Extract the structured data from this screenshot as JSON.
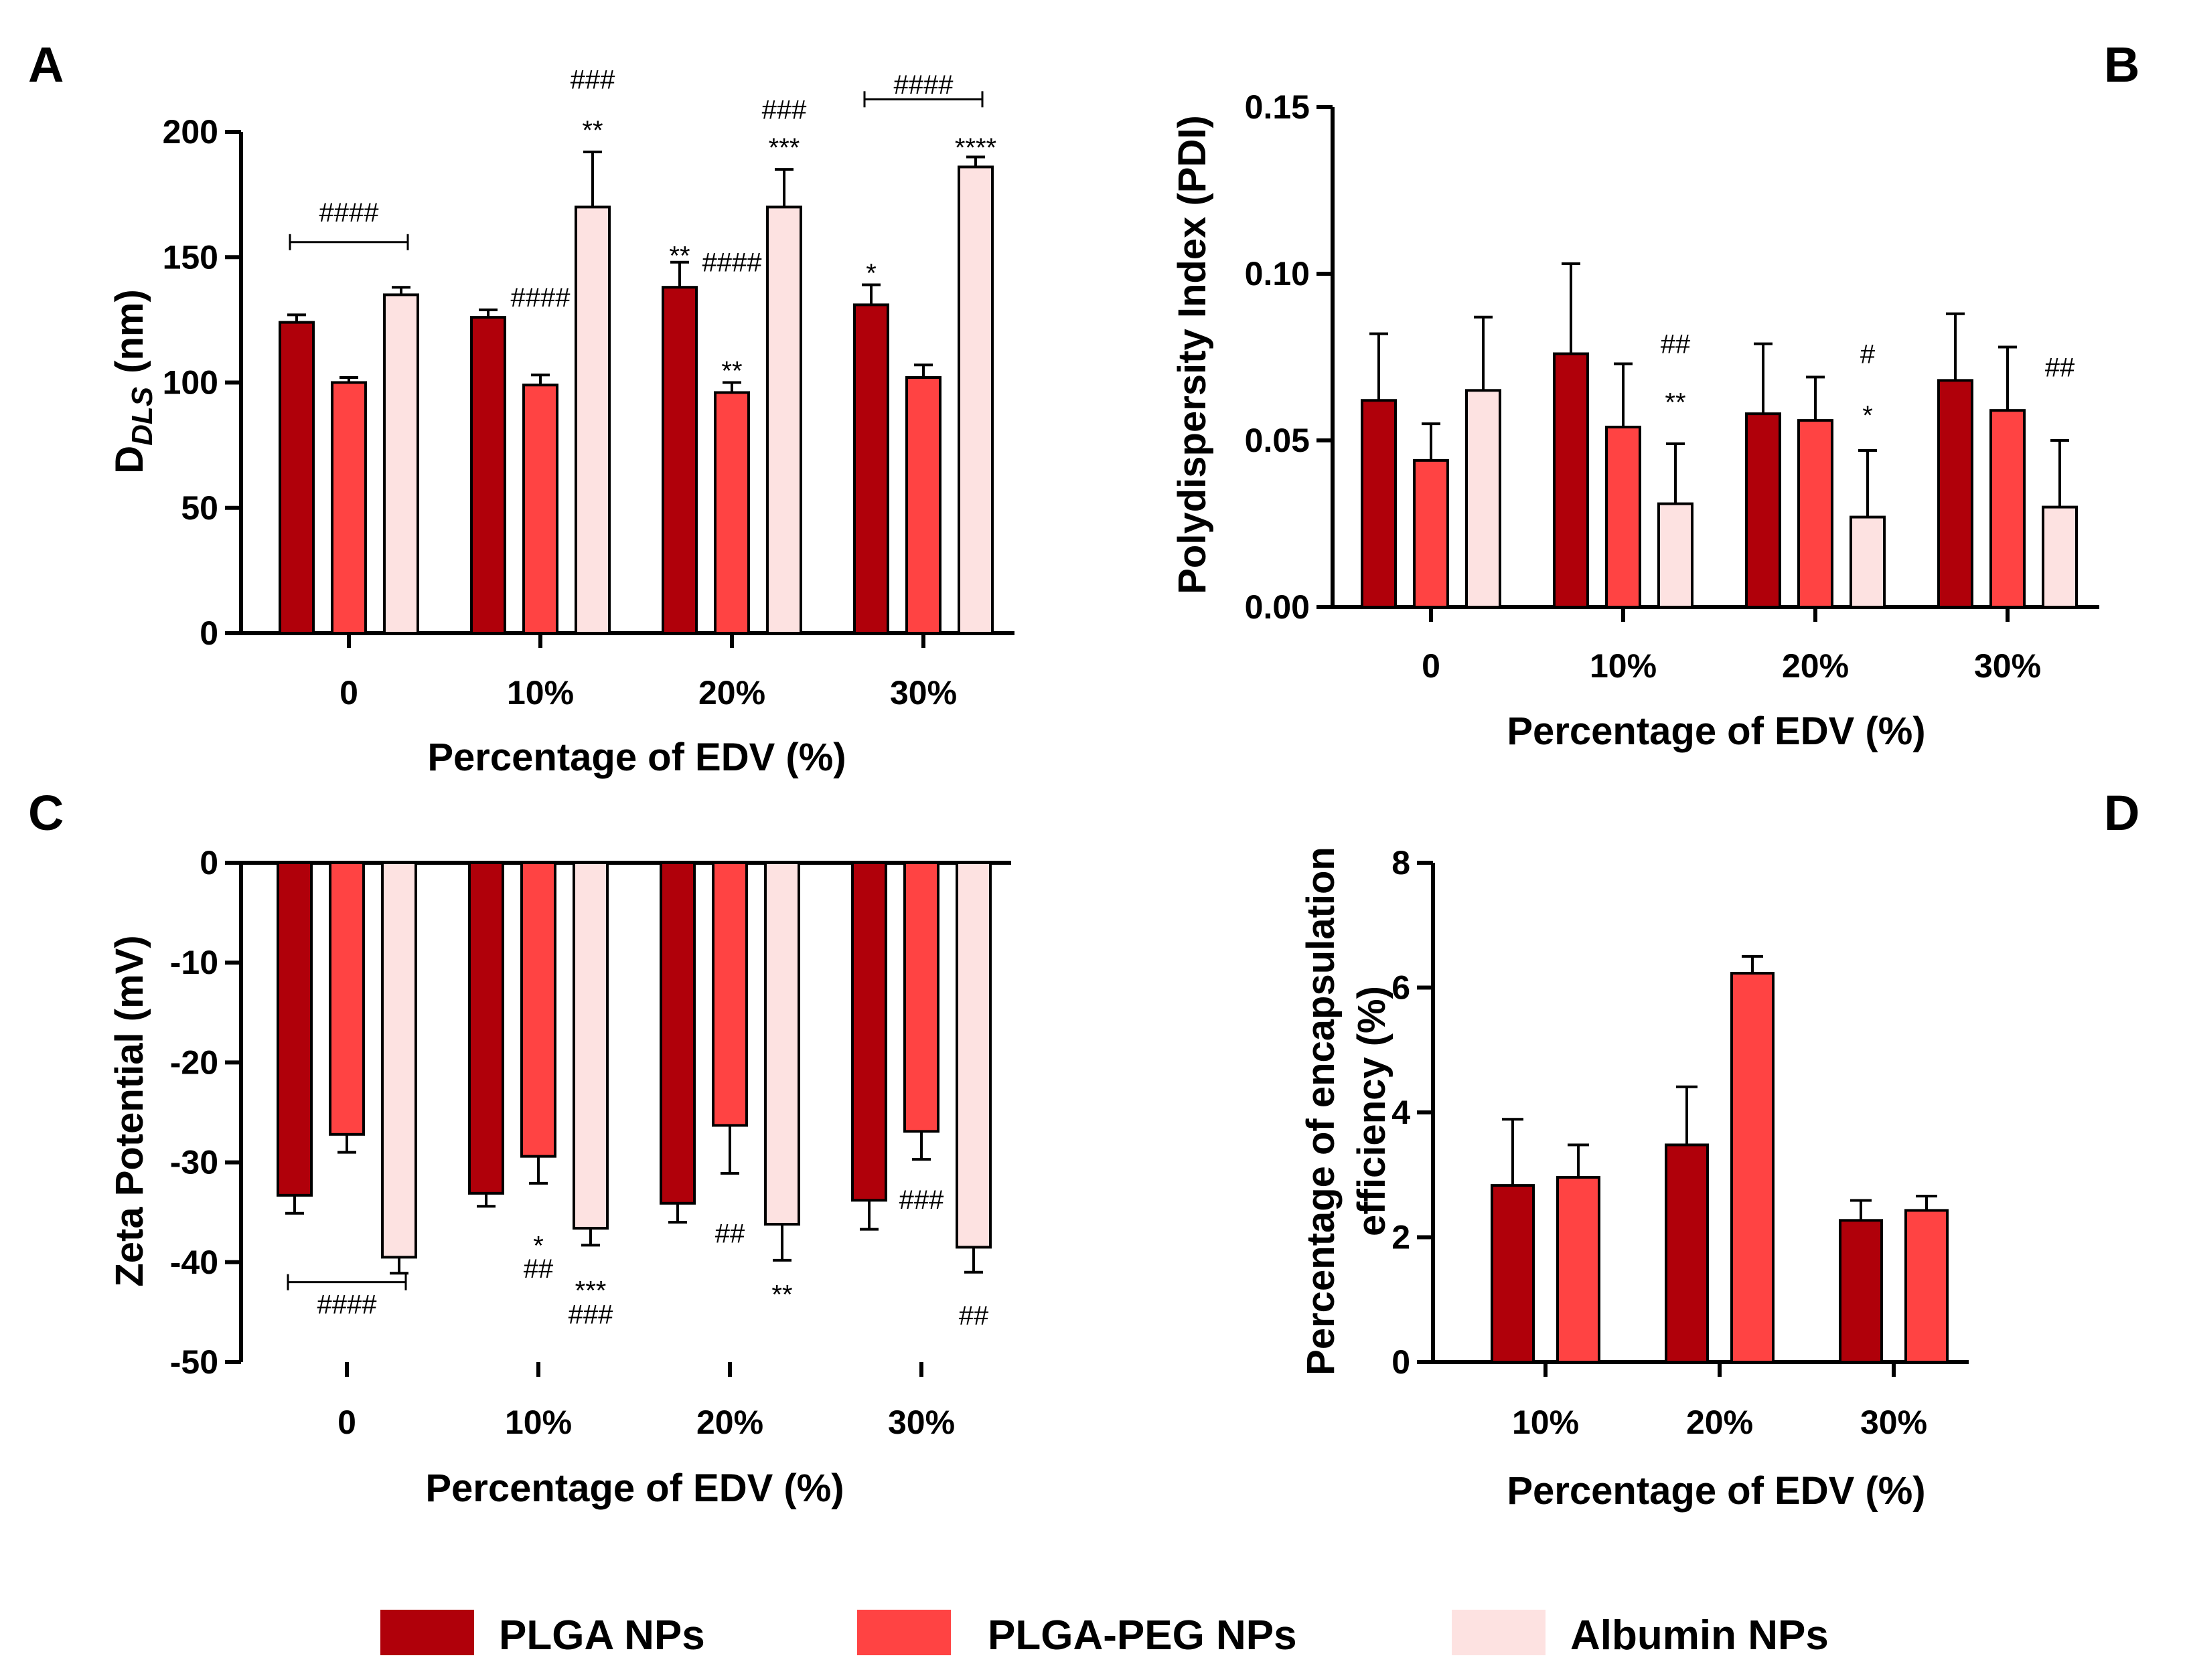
{
  "colors": {
    "plga": "#b0000a",
    "plga_peg": "#ff4343",
    "albumin": "#fde2e1"
  },
  "legend": [
    {
      "key": "plga",
      "label": "PLGA NPs"
    },
    {
      "key": "plga_peg",
      "label": "PLGA-PEG NPs"
    },
    {
      "key": "albumin",
      "label": "Albumin NPs"
    }
  ],
  "chart_data": [
    {
      "panel": "A",
      "type": "bar",
      "xlabel": "Percentage of EDV (%)",
      "ylabel_main": "D",
      "ylabel_sub": "DLS",
      "ylabel_unit": "(nm)",
      "ylim": [
        0,
        200
      ],
      "yticks": [
        "0",
        "50",
        "100",
        "150",
        "200"
      ],
      "categories": [
        "0",
        "10%",
        "20%",
        "30%"
      ],
      "series": [
        {
          "name": "PLGA NPs",
          "key": "plga",
          "values": [
            124,
            126,
            138,
            131
          ],
          "errors": [
            3,
            3,
            10,
            8
          ]
        },
        {
          "name": "PLGA-PEG NPs",
          "key": "plga_peg",
          "values": [
            100,
            99,
            96,
            102
          ],
          "errors": [
            2,
            4,
            4,
            5
          ]
        },
        {
          "name": "Albumin NPs",
          "key": "albumin",
          "values": [
            135,
            170,
            170,
            186
          ],
          "errors": [
            3,
            22,
            15,
            4
          ]
        }
      ],
      "annotations": [
        {
          "text": "####",
          "cat": 0,
          "series": 1,
          "value": 168
        },
        {
          "text": "####",
          "cat": 1,
          "series": 1,
          "value": 134
        },
        {
          "text": "**",
          "cat": 1,
          "series": 2,
          "value": 204
        },
        {
          "text": "###",
          "cat": 1,
          "series": 2,
          "value": 221
        },
        {
          "text": "**",
          "cat": 2,
          "series": 0,
          "value": 154
        },
        {
          "text": "####",
          "cat": 2,
          "series": 1,
          "value": 148
        },
        {
          "text": "**",
          "cat": 2,
          "series": 1,
          "value": 108
        },
        {
          "text": "***",
          "cat": 2,
          "series": 2,
          "value": 197
        },
        {
          "text": "###",
          "cat": 2,
          "series": 2,
          "value": 209
        },
        {
          "text": "*",
          "cat": 3,
          "series": 0,
          "value": 147
        },
        {
          "text": "####",
          "cat": 3,
          "series": 1,
          "value": 219
        },
        {
          "text": "****",
          "cat": 3,
          "series": 2,
          "value": 197
        }
      ],
      "brackets": [
        {
          "from_cat": 0,
          "from_series": 0,
          "to_cat": 0,
          "to_series": 2,
          "value": 156
        },
        {
          "from_cat": 3,
          "from_series": 0,
          "to_cat": 3,
          "to_series": 2,
          "value": 213
        }
      ]
    },
    {
      "panel": "B",
      "type": "bar",
      "xlabel": "Percentage of EDV (%)",
      "ylabel": "Polydispersity Index (PDI)",
      "ylim": [
        0,
        0.15
      ],
      "yticks": [
        "0.00",
        "0.05",
        "0.10",
        "0.15"
      ],
      "categories": [
        "0",
        "10%",
        "20%",
        "30%"
      ],
      "series": [
        {
          "name": "PLGA NPs",
          "key": "plga",
          "values": [
            0.062,
            0.076,
            0.058,
            0.068
          ],
          "errors": [
            0.02,
            0.027,
            0.021,
            0.02
          ]
        },
        {
          "name": "PLGA-PEG NPs",
          "key": "plga_peg",
          "values": [
            0.044,
            0.054,
            0.056,
            0.059
          ],
          "errors": [
            0.011,
            0.019,
            0.013,
            0.019
          ]
        },
        {
          "name": "Albumin NPs",
          "key": "albumin",
          "values": [
            0.065,
            0.031,
            0.027,
            0.03
          ],
          "errors": [
            0.022,
            0.018,
            0.02,
            0.02
          ]
        }
      ],
      "annotations": [
        {
          "text": "**",
          "cat": 1,
          "series": 2,
          "value": 0.064
        },
        {
          "text": "##",
          "cat": 1,
          "series": 2,
          "value": 0.079
        },
        {
          "text": "*",
          "cat": 2,
          "series": 2,
          "value": 0.06
        },
        {
          "text": "#",
          "cat": 2,
          "series": 2,
          "value": 0.076
        },
        {
          "text": "##",
          "cat": 3,
          "series": 2,
          "value": 0.072
        }
      ],
      "brackets": []
    },
    {
      "panel": "C",
      "type": "bar",
      "xlabel": "Percentage of EDV (%)",
      "ylabel": "Zeta Potential (mV)",
      "ylim": [
        -50,
        0
      ],
      "yticks": [
        "-50",
        "-40",
        "-30",
        "-20",
        "-10",
        "0"
      ],
      "categories": [
        "0",
        "10%",
        "20%",
        "30%"
      ],
      "series": [
        {
          "name": "PLGA NPs",
          "key": "plga",
          "values": [
            -33.3,
            -33.1,
            -34.1,
            -33.8
          ],
          "errors": [
            1.8,
            1.3,
            1.9,
            2.9
          ]
        },
        {
          "name": "PLGA-PEG NPs",
          "key": "plga_peg",
          "values": [
            -27.2,
            -29.4,
            -26.3,
            -26.9
          ],
          "errors": [
            1.8,
            2.7,
            4.8,
            2.8
          ]
        },
        {
          "name": "Albumin NPs",
          "key": "albumin",
          "values": [
            -39.5,
            -36.6,
            -36.2,
            -38.5
          ],
          "errors": [
            1.6,
            1.7,
            3.6,
            2.5
          ]
        }
      ],
      "annotations": [
        {
          "text": "####",
          "cat": 0,
          "series": 1,
          "value": -44.2
        },
        {
          "text": "*",
          "cat": 1,
          "series": 1,
          "value": -37.5
        },
        {
          "text": "##",
          "cat": 1,
          "series": 1,
          "value": -40.6
        },
        {
          "text": "***",
          "cat": 1,
          "series": 2,
          "value": -42.0
        },
        {
          "text": "###",
          "cat": 1,
          "series": 2,
          "value": -45.2
        },
        {
          "text": "##",
          "cat": 2,
          "series": 1,
          "value": -37.1
        },
        {
          "text": "**",
          "cat": 2,
          "series": 2,
          "value": -42.4
        },
        {
          "text": "###",
          "cat": 3,
          "series": 1,
          "value": -33.7
        },
        {
          "text": "##",
          "cat": 3,
          "series": 2,
          "value": -45.3
        }
      ],
      "brackets": [
        {
          "from_cat": 0,
          "from_series": 0,
          "to_cat": 0,
          "to_series": 2,
          "value": -42.0
        }
      ]
    },
    {
      "panel": "D",
      "type": "bar",
      "xlabel": "Percentage of EDV (%)",
      "ylabel": "Percentage of encapsulation",
      "ylabel2": "efficiency (%)",
      "ylim": [
        0,
        8
      ],
      "yticks": [
        "0",
        "2",
        "4",
        "6",
        "8"
      ],
      "categories": [
        "10%",
        "20%",
        "30%"
      ],
      "series": [
        {
          "name": "PLGA NPs",
          "key": "plga",
          "values": [
            2.83,
            3.48,
            2.27
          ],
          "errors": [
            1.06,
            0.93,
            0.32
          ]
        },
        {
          "name": "PLGA-PEG NPs",
          "key": "plga_peg",
          "values": [
            2.96,
            6.23,
            2.43
          ],
          "errors": [
            0.52,
            0.27,
            0.23
          ]
        }
      ],
      "annotations": [],
      "brackets": []
    }
  ]
}
